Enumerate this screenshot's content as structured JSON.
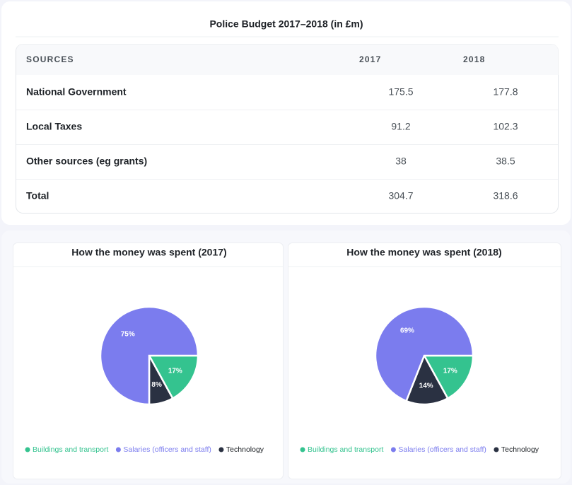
{
  "table": {
    "title": "Police Budget 2017–2018 (in £m)",
    "columns": [
      "SOURCES",
      "2017",
      "2018"
    ],
    "rows": [
      [
        "National Government",
        175.5,
        177.8
      ],
      [
        "Local Taxes",
        91.2,
        102.3
      ],
      [
        "Other sources (eg grants)",
        38,
        38.5
      ],
      [
        "Total",
        304.7,
        318.6
      ]
    ]
  },
  "chart_data": [
    {
      "type": "pie",
      "title": "How the money was spent (2017)",
      "categories": [
        "Buildings and transport",
        "Salaries (officers and staff)",
        "Technology"
      ],
      "values": [
        17,
        75,
        8
      ],
      "value_labels": [
        "17%",
        "75%",
        "8%"
      ],
      "colors": [
        "#34c38f",
        "#7b7cee",
        "#2a3142"
      ]
    },
    {
      "type": "pie",
      "title": "How the money was spent (2018)",
      "categories": [
        "Buildings and transport",
        "Salaries (officers and staff)",
        "Technology"
      ],
      "values": [
        17,
        69,
        14
      ],
      "value_labels": [
        "17%",
        "69%",
        "14%"
      ],
      "colors": [
        "#34c38f",
        "#7b7cee",
        "#2a3142"
      ]
    }
  ]
}
